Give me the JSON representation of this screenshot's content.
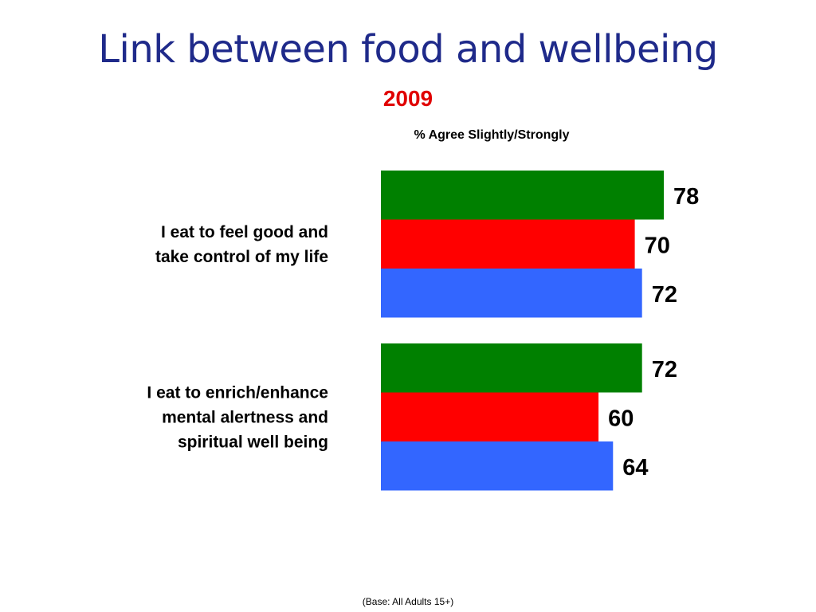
{
  "title": "Link between food and wellbeing",
  "year": "2009",
  "footnote": "(Base:  All Adults 15+)",
  "chart_data": {
    "type": "bar",
    "orientation": "horizontal",
    "subtitle": "% Agree Slightly/Strongly",
    "categories": [
      [
        "I eat to feel good and",
        "take control of my life"
      ],
      [
        "I eat to enrich/enhance",
        "mental alertness and",
        "spiritual well being"
      ]
    ],
    "series": [
      {
        "color": "#008000",
        "values": [
          78,
          72
        ]
      },
      {
        "color": "#ff0000",
        "values": [
          70,
          60
        ]
      },
      {
        "color": "#3366ff",
        "values": [
          72,
          64
        ]
      }
    ],
    "xlim": [
      0,
      100
    ],
    "grid": false,
    "legend": "none",
    "data_labels": true
  }
}
